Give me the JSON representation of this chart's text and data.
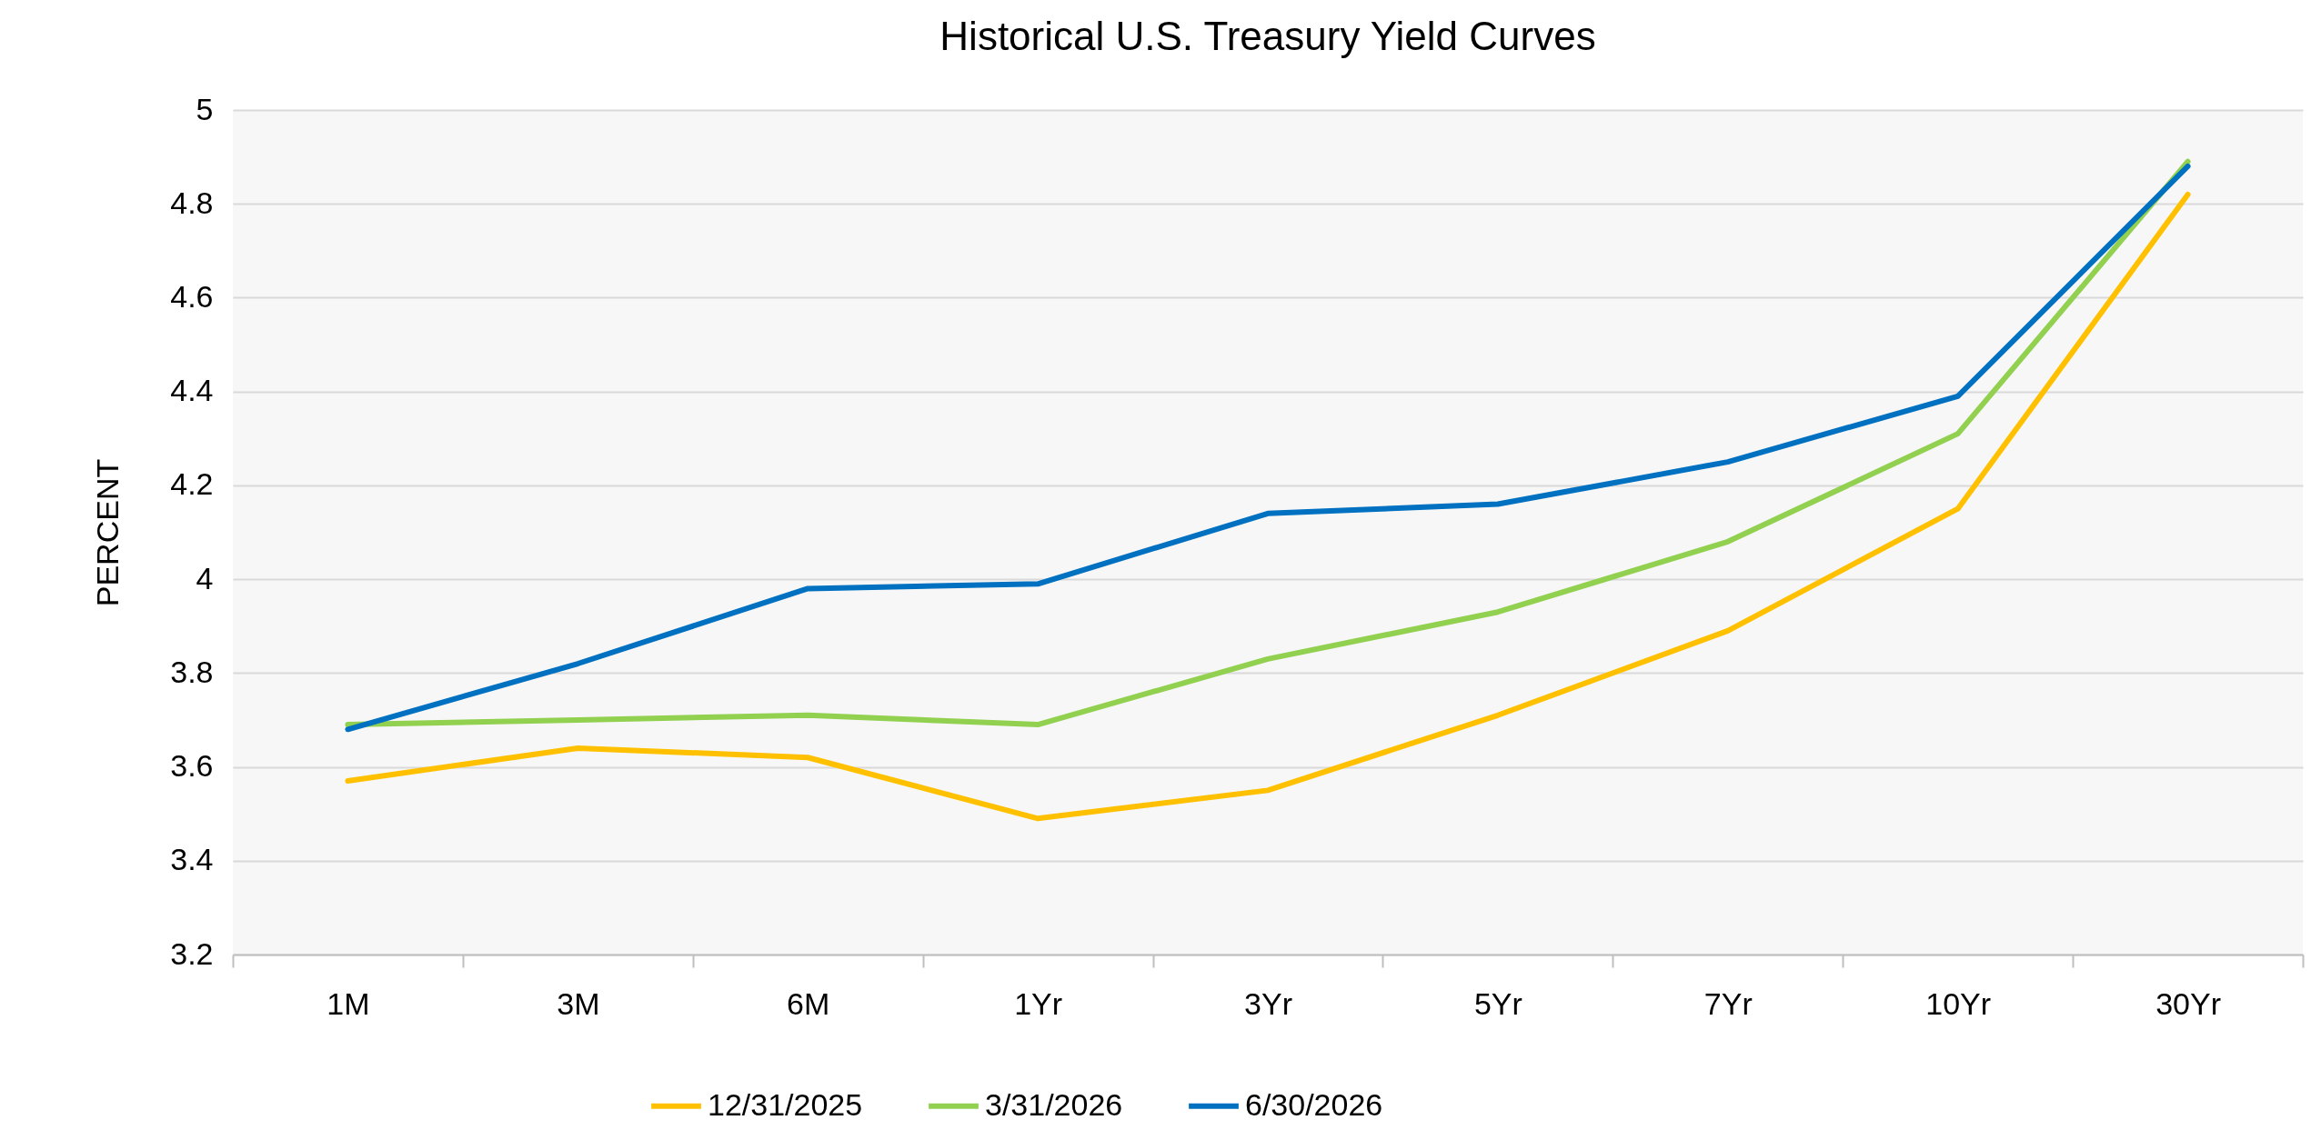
{
  "chart_data": {
    "type": "line",
    "title": "Historical U.S. Treasury Yield Curves",
    "ylabel": "PERCENT",
    "categories": [
      "1M",
      "3M",
      "6M",
      "1Yr",
      "3Yr",
      "5Yr",
      "7Yr",
      "10Yr",
      "30Yr"
    ],
    "series": [
      {
        "name": "12/31/2025",
        "color": "#ffc000",
        "values": [
          3.57,
          3.64,
          3.62,
          3.49,
          3.55,
          3.71,
          3.89,
          4.15,
          4.82
        ]
      },
      {
        "name": "3/31/2026",
        "color": "#92d050",
        "values": [
          3.69,
          3.7,
          3.71,
          3.69,
          3.83,
          3.93,
          4.08,
          4.31,
          4.89
        ]
      },
      {
        "name": "6/30/2026",
        "color": "#0070c0",
        "values": [
          3.68,
          3.82,
          3.98,
          3.99,
          4.14,
          4.16,
          4.25,
          4.39,
          4.88
        ]
      }
    ],
    "ylim": [
      3.2,
      5
    ],
    "yticks": [
      3.2,
      3.4,
      3.6,
      3.8,
      4,
      4.2,
      4.4,
      4.6,
      4.8,
      5
    ],
    "grid": "y",
    "legend": "bottom",
    "marker": "none",
    "line_style": "solid"
  }
}
